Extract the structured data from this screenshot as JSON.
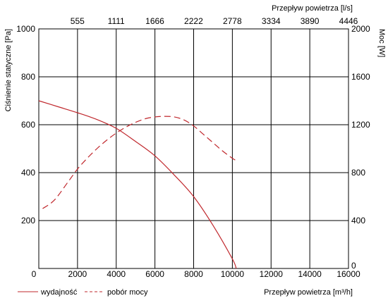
{
  "chart_data": {
    "type": "line",
    "x_bottom": {
      "label": "Przepływ powietrza [m³/h]",
      "range": [
        0,
        16000
      ],
      "ticks": [
        0,
        2000,
        4000,
        6000,
        8000,
        10000,
        12000,
        14000,
        16000
      ]
    },
    "x_top": {
      "label": "Przepływ powietrza [l/s]",
      "range": [
        0,
        4446
      ],
      "ticks": [
        555,
        1111,
        1666,
        2222,
        2778,
        3334,
        3890,
        4446
      ]
    },
    "y_left": {
      "label": "Ciśnienie statyczne [Pa]",
      "range": [
        0,
        1000
      ],
      "ticks": [
        200,
        400,
        600,
        800,
        1000
      ]
    },
    "y_right": {
      "label": "Moc [W]",
      "range": [
        0,
        2000
      ],
      "ticks": [
        0,
        400,
        800,
        1200,
        1600,
        2000
      ]
    },
    "grid": true,
    "legend_position": "bottom-left",
    "series": [
      {
        "name": "wydajność",
        "axis": "left",
        "color": "#c0282d",
        "dash": "solid",
        "x": [
          0,
          1000,
          2000,
          3000,
          4000,
          5000,
          6000,
          7000,
          8000,
          9000,
          10000,
          10200
        ],
        "y": [
          700,
          675,
          650,
          622,
          585,
          530,
          470,
          390,
          300,
          180,
          40,
          0
        ]
      },
      {
        "name": "pobór mocy",
        "axis": "right",
        "color": "#c0282d",
        "dash": "dashed",
        "x": [
          200,
          800,
          1500,
          2000,
          2500,
          3000,
          3500,
          4000,
          4500,
          5000,
          5500,
          6000,
          6500,
          7000,
          7500,
          8000,
          8500,
          9000,
          9500,
          10000,
          10200
        ],
        "y": [
          500,
          570,
          720,
          830,
          920,
          1000,
          1070,
          1130,
          1180,
          1220,
          1250,
          1265,
          1270,
          1265,
          1240,
          1190,
          1120,
          1050,
          980,
          920,
          900
        ]
      }
    ]
  }
}
